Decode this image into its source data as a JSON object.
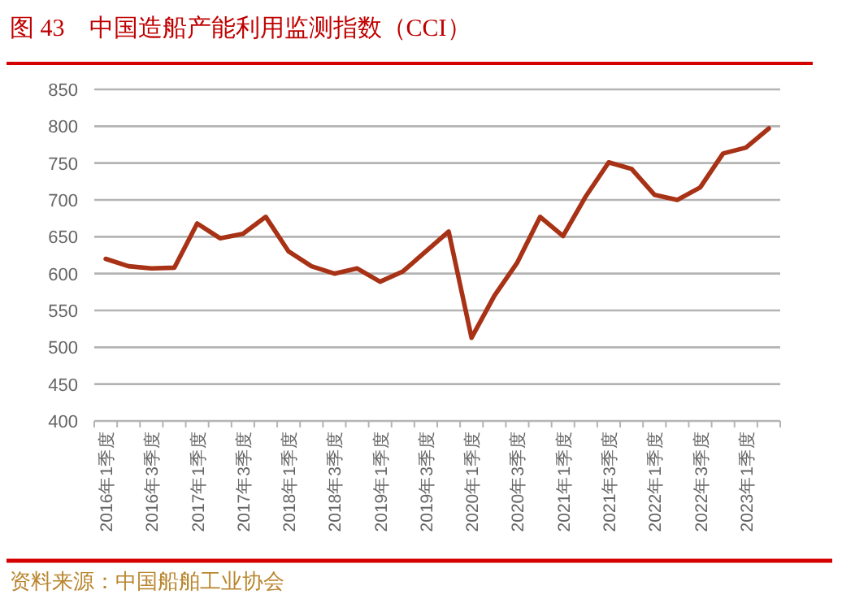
{
  "chart_data": {
    "type": "line",
    "title": "图 43　中国造船产能利用监测指数（CCI）",
    "categories": [
      "2016年1季度",
      null,
      "2016年3季度",
      null,
      "2017年1季度",
      null,
      "2017年3季度",
      null,
      "2018年1季度",
      null,
      "2018年3季度",
      null,
      "2019年1季度",
      null,
      "2019年3季度",
      null,
      "2020年1季度",
      null,
      "2020年3季度",
      null,
      "2021年1季度",
      null,
      "2021年3季度",
      null,
      "2022年1季度",
      null,
      "2022年3季度",
      null,
      "2023年1季度",
      null
    ],
    "series": [
      {
        "color": "#a83216",
        "values": [
          620,
          610,
          607,
          608,
          668,
          648,
          654,
          677,
          630,
          610,
          600,
          607,
          589,
          603,
          630,
          657,
          513,
          570,
          615,
          677,
          651,
          705,
          751,
          742,
          707,
          700,
          717,
          763,
          771,
          797
        ]
      }
    ],
    "ylim": [
      400,
      850
    ],
    "yticks": [
      400,
      450,
      500,
      550,
      600,
      650,
      700,
      750,
      800,
      850
    ],
    "grid": "y",
    "marker": "none",
    "line_style": "solid",
    "annotations": [
      "资料来源：中国船舶工业协会"
    ]
  }
}
